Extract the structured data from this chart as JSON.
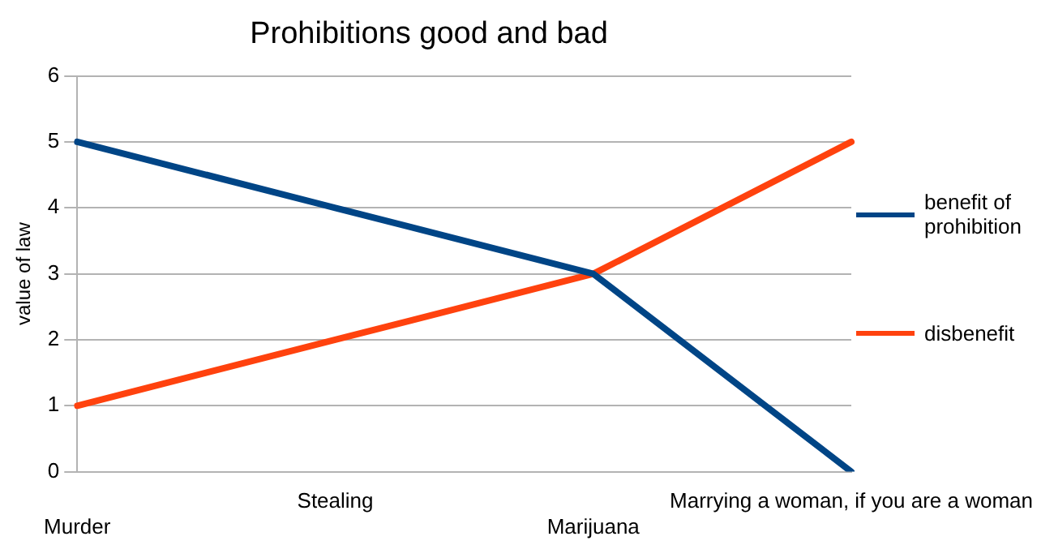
{
  "chart_data": {
    "type": "line",
    "title": "Prohibitions good and bad",
    "ylabel": "value of law",
    "categories": [
      "Murder",
      "Stealing",
      "Marijuana",
      "Marrying a woman, if you are a woman"
    ],
    "series": [
      {
        "name": "benefit of prohibition",
        "color": "#004586",
        "values": [
          5,
          4,
          3,
          0
        ]
      },
      {
        "name": "disbenefit",
        "color": "#ff420e",
        "values": [
          1,
          2,
          3,
          5
        ]
      }
    ],
    "ylim": [
      0,
      6
    ],
    "yticks": [
      0,
      1,
      2,
      3,
      4,
      5,
      6
    ],
    "grid": "y",
    "legend": "right",
    "marker": "none",
    "line_style": "solid"
  }
}
